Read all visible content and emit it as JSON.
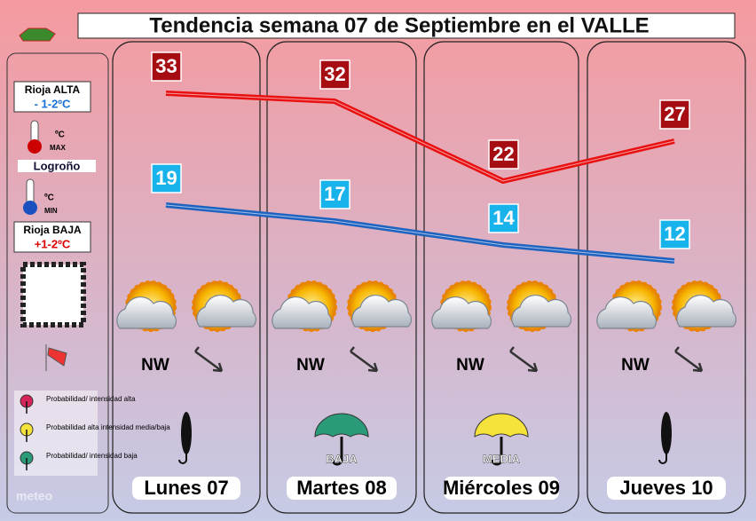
{
  "title": "Tendencia semana 07 de Septiembre en el VALLE",
  "side": {
    "alta_label": "Rioja ALTA",
    "alta_delta": "- 1-2ºC",
    "max_unit": "ºC",
    "max_tag": "MAX",
    "city": "Logroño",
    "min_unit": "ºC",
    "min_tag": "MIN",
    "baja_label": "Rioja BAJA",
    "baja_delta": "+1-2ºC",
    "rain_legend": [
      "Probabilidad/ intensidad alta",
      "Probabilidad alta intensidad media/baja",
      "Probabilidad/ intensidad baja"
    ]
  },
  "days": [
    {
      "name": "Lunes 07",
      "max": 33,
      "min": 19,
      "wind": "NW"
    },
    {
      "name": "Martes 08",
      "max": 32,
      "min": 17,
      "wind": "NW",
      "rain": "BAJA"
    },
    {
      "name": "Miércoles 09",
      "max": 22,
      "min": 14,
      "wind": "NW",
      "rain": "MEDIA"
    },
    {
      "name": "Jueves 10",
      "max": 27,
      "min": 12,
      "wind": "NW"
    }
  ]
}
